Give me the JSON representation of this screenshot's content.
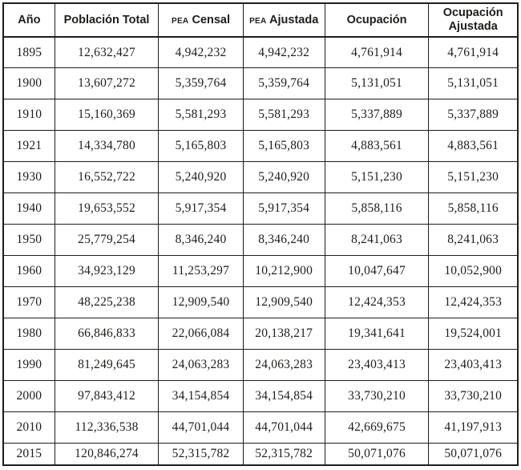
{
  "colors": {
    "ink": "#1d1d1b",
    "background": "#ffffff"
  },
  "table": {
    "columns": [
      {
        "key": "ano",
        "label": "Año"
      },
      {
        "key": "poblacion_total",
        "label": "Población Total"
      },
      {
        "key": "pea_censal",
        "small_prefix": "PEA",
        "label": "Censal"
      },
      {
        "key": "pea_ajustada",
        "small_prefix": "PEA",
        "label": "Ajustada"
      },
      {
        "key": "ocupacion",
        "label": "Ocupación"
      },
      {
        "key": "ocupacion_ajustada",
        "label": "Ocupación Ajustada",
        "wrap": true
      }
    ],
    "column_widths_pct": [
      10.0,
      20.2,
      16.4,
      15.9,
      20.2,
      17.3
    ],
    "rows": [
      {
        "year": "1895",
        "values": [
          "12,632,427",
          "4,942,232",
          "4,942,232",
          "4,761,914",
          "4,761,914"
        ]
      },
      {
        "year": "1900",
        "values": [
          "13,607,272",
          "5,359,764",
          "5,359,764",
          "5,131,051",
          "5,131,051"
        ]
      },
      {
        "year": "1910",
        "values": [
          "15,160,369",
          "5,581,293",
          "5,581,293",
          "5,337,889",
          "5,337,889"
        ]
      },
      {
        "year": "1921",
        "values": [
          "14,334,780",
          "5,165,803",
          "5,165,803",
          "4,883,561",
          "4,883,561"
        ]
      },
      {
        "year": "1930",
        "values": [
          "16,552,722",
          "5,240,920",
          "5,240,920",
          "5,151,230",
          "5,151,230"
        ]
      },
      {
        "year": "1940",
        "values": [
          "19,653,552",
          "5,917,354",
          "5,917,354",
          "5,858,116",
          "5,858,116"
        ]
      },
      {
        "year": "1950",
        "values": [
          "25,779,254",
          "8,346,240",
          "8,346,240",
          "8,241,063",
          "8,241,063"
        ]
      },
      {
        "year": "1960",
        "values": [
          "34,923,129",
          "11,253,297",
          "10,212,900",
          "10,047,647",
          "10,052,900"
        ]
      },
      {
        "year": "1970",
        "values": [
          "48,225,238",
          "12,909,540",
          "12,909,540",
          "12,424,353",
          "12,424,353"
        ]
      },
      {
        "year": "1980",
        "values": [
          "66,846,833",
          "22,066,084",
          "20,138,217",
          "19,341,641",
          "19,524,001"
        ]
      },
      {
        "year": "1990",
        "values": [
          "81,249,645",
          "24,063,283",
          "24,063,283",
          "23,403,413",
          "23,403,413"
        ]
      },
      {
        "year": "2000",
        "values": [
          "97,843,412",
          "34,154,854",
          "34,154,854",
          "33,730,210",
          "33,730,210"
        ]
      },
      {
        "year": "2010",
        "values": [
          "112,336,538",
          "44,701,044",
          "44,701,044",
          "42,669,675",
          "41,197,913"
        ]
      },
      {
        "year": "2015",
        "values": [
          "120,846,274",
          "52,315,782",
          "52,315,782",
          "50,071,076",
          "50,071,076"
        ]
      }
    ]
  },
  "chart_data": {
    "type": "table",
    "title": "",
    "columns": [
      "Año",
      "Población Total",
      "PEA Censal",
      "PEA Ajustada",
      "Ocupación",
      "Ocupación Ajustada"
    ],
    "rows": [
      [
        "1895",
        "12,632,427",
        "4,942,232",
        "4,942,232",
        "4,761,914",
        "4,761,914"
      ],
      [
        "1900",
        "13,607,272",
        "5,359,764",
        "5,359,764",
        "5,131,051",
        "5,131,051"
      ],
      [
        "1910",
        "15,160,369",
        "5,581,293",
        "5,581,293",
        "5,337,889",
        "5,337,889"
      ],
      [
        "1921",
        "14,334,780",
        "5,165,803",
        "5,165,803",
        "4,883,561",
        "4,883,561"
      ],
      [
        "1930",
        "16,552,722",
        "5,240,920",
        "5,240,920",
        "5,151,230",
        "5,151,230"
      ],
      [
        "1940",
        "19,653,552",
        "5,917,354",
        "5,917,354",
        "5,858,116",
        "5,858,116"
      ],
      [
        "1950",
        "25,779,254",
        "8,346,240",
        "8,346,240",
        "8,241,063",
        "8,241,063"
      ],
      [
        "1960",
        "34,923,129",
        "11,253,297",
        "10,212,900",
        "10,047,647",
        "10,052,900"
      ],
      [
        "1970",
        "48,225,238",
        "12,909,540",
        "12,909,540",
        "12,424,353",
        "12,424,353"
      ],
      [
        "1980",
        "66,846,833",
        "22,066,084",
        "20,138,217",
        "19,341,641",
        "19,524,001"
      ],
      [
        "1990",
        "81,249,645",
        "24,063,283",
        "24,063,283",
        "23,403,413",
        "23,403,413"
      ],
      [
        "2000",
        "97,843,412",
        "34,154,854",
        "34,154,854",
        "33,730,210",
        "33,730,210"
      ],
      [
        "2010",
        "112,336,538",
        "44,701,044",
        "44,701,044",
        "42,669,675",
        "41,197,913"
      ],
      [
        "2015",
        "120,846,274",
        "52,315,782",
        "52,315,782",
        "50,071,076",
        "50,071,076"
      ]
    ]
  }
}
